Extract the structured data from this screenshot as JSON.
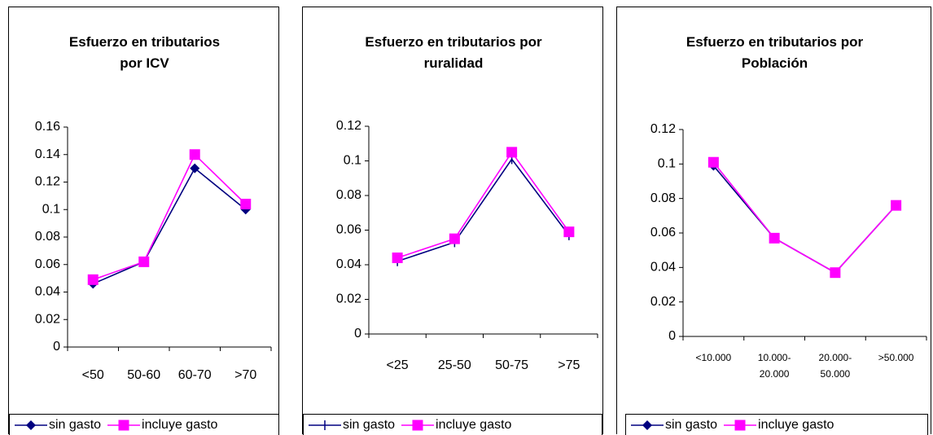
{
  "chart_data": [
    {
      "type": "line",
      "title": "Esfuerzo en tributarios por ICV",
      "categories": [
        "<50",
        "50-60",
        "60-70",
        ">70"
      ],
      "series": [
        {
          "name": "sin gasto",
          "color": "#000080",
          "marker": "diamond",
          "values": [
            0.046,
            0.062,
            0.13,
            0.1
          ]
        },
        {
          "name": "incluye gasto",
          "color": "#ff00ff",
          "marker": "square",
          "values": [
            0.049,
            0.062,
            0.14,
            0.104
          ]
        }
      ],
      "ylim": [
        0,
        0.16
      ],
      "yticks": [
        0,
        0.02,
        0.04,
        0.06,
        0.08,
        0.1,
        0.12,
        0.14,
        0.16
      ],
      "grid": false,
      "legend": "bottom"
    },
    {
      "type": "line",
      "title": "Esfuerzo en tributarios por ruralidad",
      "categories": [
        "<25",
        "25-50",
        "50-75",
        ">75"
      ],
      "series": [
        {
          "name": "sin gasto",
          "color": "#000080",
          "marker": "plus",
          "values": [
            0.042,
            0.053,
            0.101,
            0.057
          ]
        },
        {
          "name": "incluye gasto",
          "color": "#ff00ff",
          "marker": "square",
          "values": [
            0.044,
            0.055,
            0.105,
            0.059
          ]
        }
      ],
      "ylim": [
        0,
        0.12
      ],
      "yticks": [
        0,
        0.02,
        0.04,
        0.06,
        0.08,
        0.1,
        0.12
      ],
      "grid": false,
      "legend": "bottom"
    },
    {
      "type": "line",
      "title": "Esfuerzo en tributarios por Población",
      "categories": [
        "<10.000",
        "10.000- 20.000",
        "20.000- 50.000",
        ">50.000"
      ],
      "series": [
        {
          "name": "sin gasto",
          "color": "#000080",
          "marker": "diamond",
          "values": [
            0.099,
            0.057,
            0.037,
            0.076
          ]
        },
        {
          "name": "incluye gasto",
          "color": "#ff00ff",
          "marker": "square",
          "values": [
            0.101,
            0.057,
            0.037,
            0.076
          ]
        }
      ],
      "ylim": [
        0,
        0.12
      ],
      "yticks": [
        0,
        0.02,
        0.04,
        0.06,
        0.08,
        0.1,
        0.12
      ],
      "grid": false,
      "legend": "bottom"
    }
  ]
}
